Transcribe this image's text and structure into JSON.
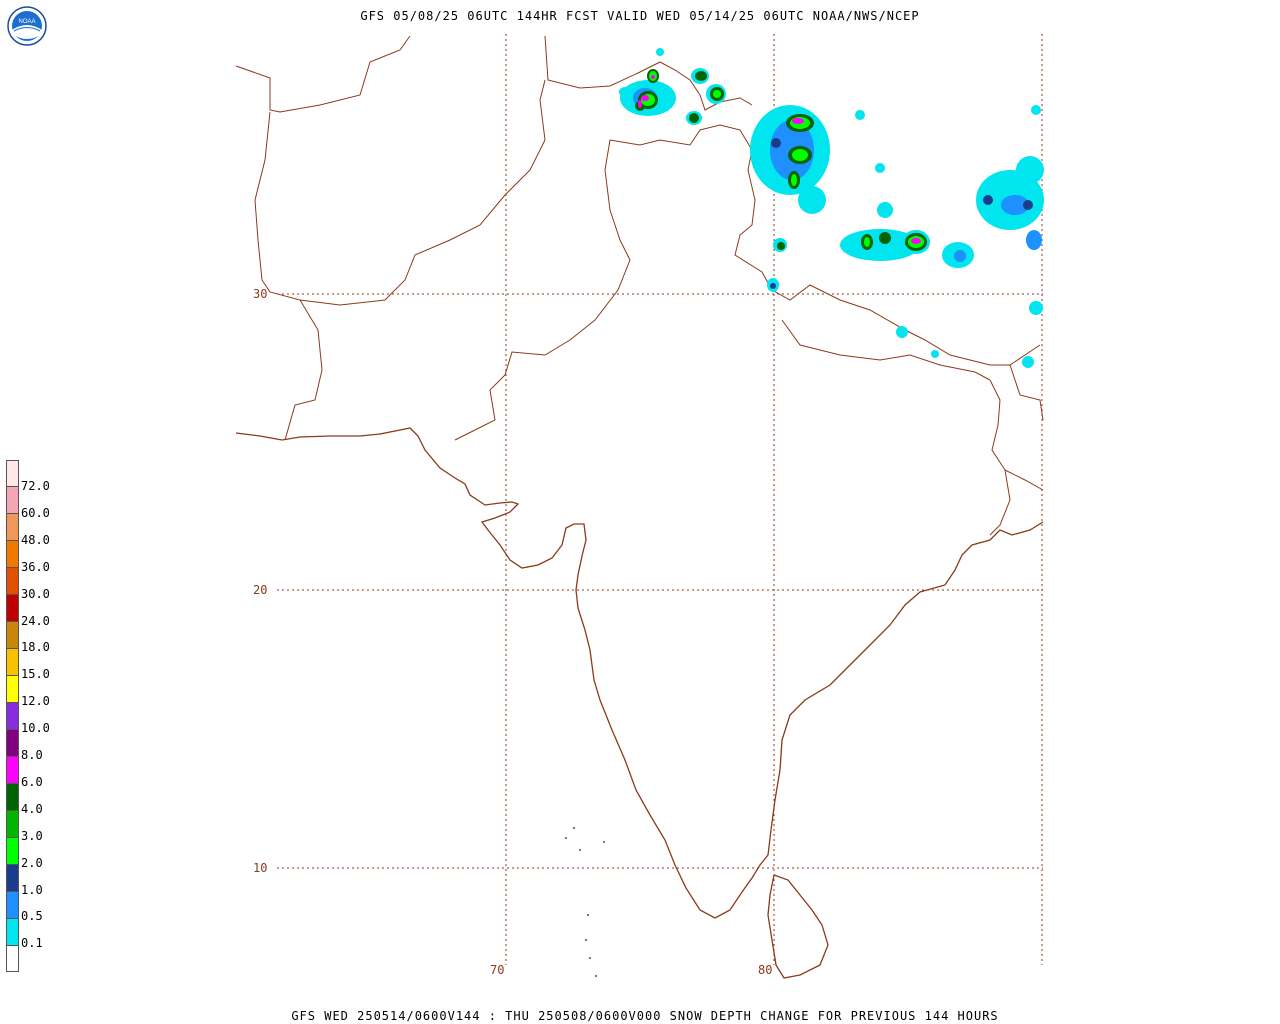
{
  "header": {
    "title": "GFS 05/08/25 06UTC 144HR FCST VALID WED 05/14/25 06UTC NOAA/NWS/NCEP",
    "logo_text": "NOAA"
  },
  "footer": {
    "caption": "GFS WED 250514/0600V144 : THU 250508/0600V000 SNOW DEPTH CHANGE FOR PREVIOUS 144 HOURS"
  },
  "map": {
    "lat_labels": [
      "30",
      "20",
      "10"
    ],
    "lon_labels": [
      "70",
      "80"
    ],
    "border_color": "#8b3a1a",
    "grid_color": "#8b3a1a"
  },
  "legend": {
    "labels": [
      "72.0",
      "60.0",
      "48.0",
      "36.0",
      "30.0",
      "24.0",
      "18.0",
      "15.0",
      "12.0",
      "10.0",
      "8.0",
      "6.0",
      "4.0",
      "3.0",
      "2.0",
      "1.0",
      "0.5",
      "0.1"
    ],
    "colors": [
      "#ffe8e8",
      "#f4a6b4",
      "#f0975a",
      "#f07a00",
      "#e05000",
      "#c00000",
      "#c8860a",
      "#f7c300",
      "#ffff00",
      "#8a2be2",
      "#800080",
      "#ff00ff",
      "#006400",
      "#00b400",
      "#00ff00",
      "#1a3c8c",
      "#1e90ff",
      "#00e5ee",
      "#ffffff"
    ]
  }
}
